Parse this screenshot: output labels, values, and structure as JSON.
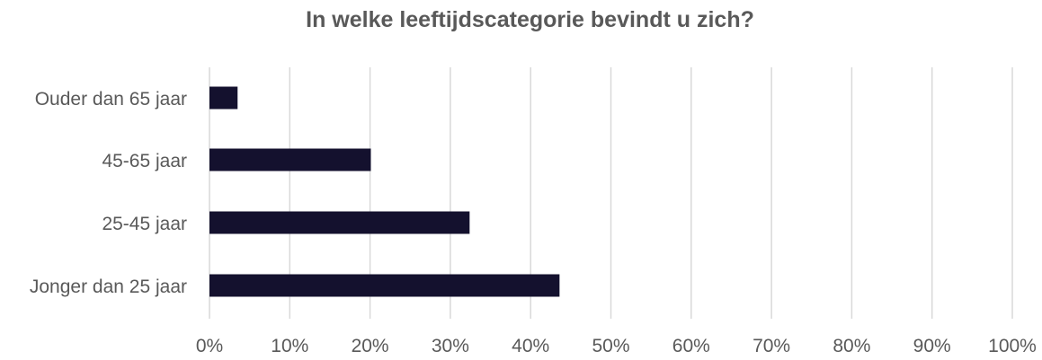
{
  "chart_data": {
    "type": "bar",
    "orientation": "horizontal",
    "title": "In welke leeftijdscategorie bevindt u zich?",
    "categories": [
      "Ouder dan 65 jaar",
      "45-65 jaar",
      "25-45 jaar",
      "Jonger dan 25 jaar"
    ],
    "values": [
      3.5,
      20.1,
      32.4,
      43.6
    ],
    "xlim": [
      0,
      100
    ],
    "x_ticks": [
      "0%",
      "10%",
      "20%",
      "30%",
      "40%",
      "50%",
      "60%",
      "70%",
      "80%",
      "90%",
      "100%"
    ],
    "grid": true,
    "bar_color": "#14112E",
    "grid_color": "#D9D9D9",
    "text_color": "#595959"
  }
}
